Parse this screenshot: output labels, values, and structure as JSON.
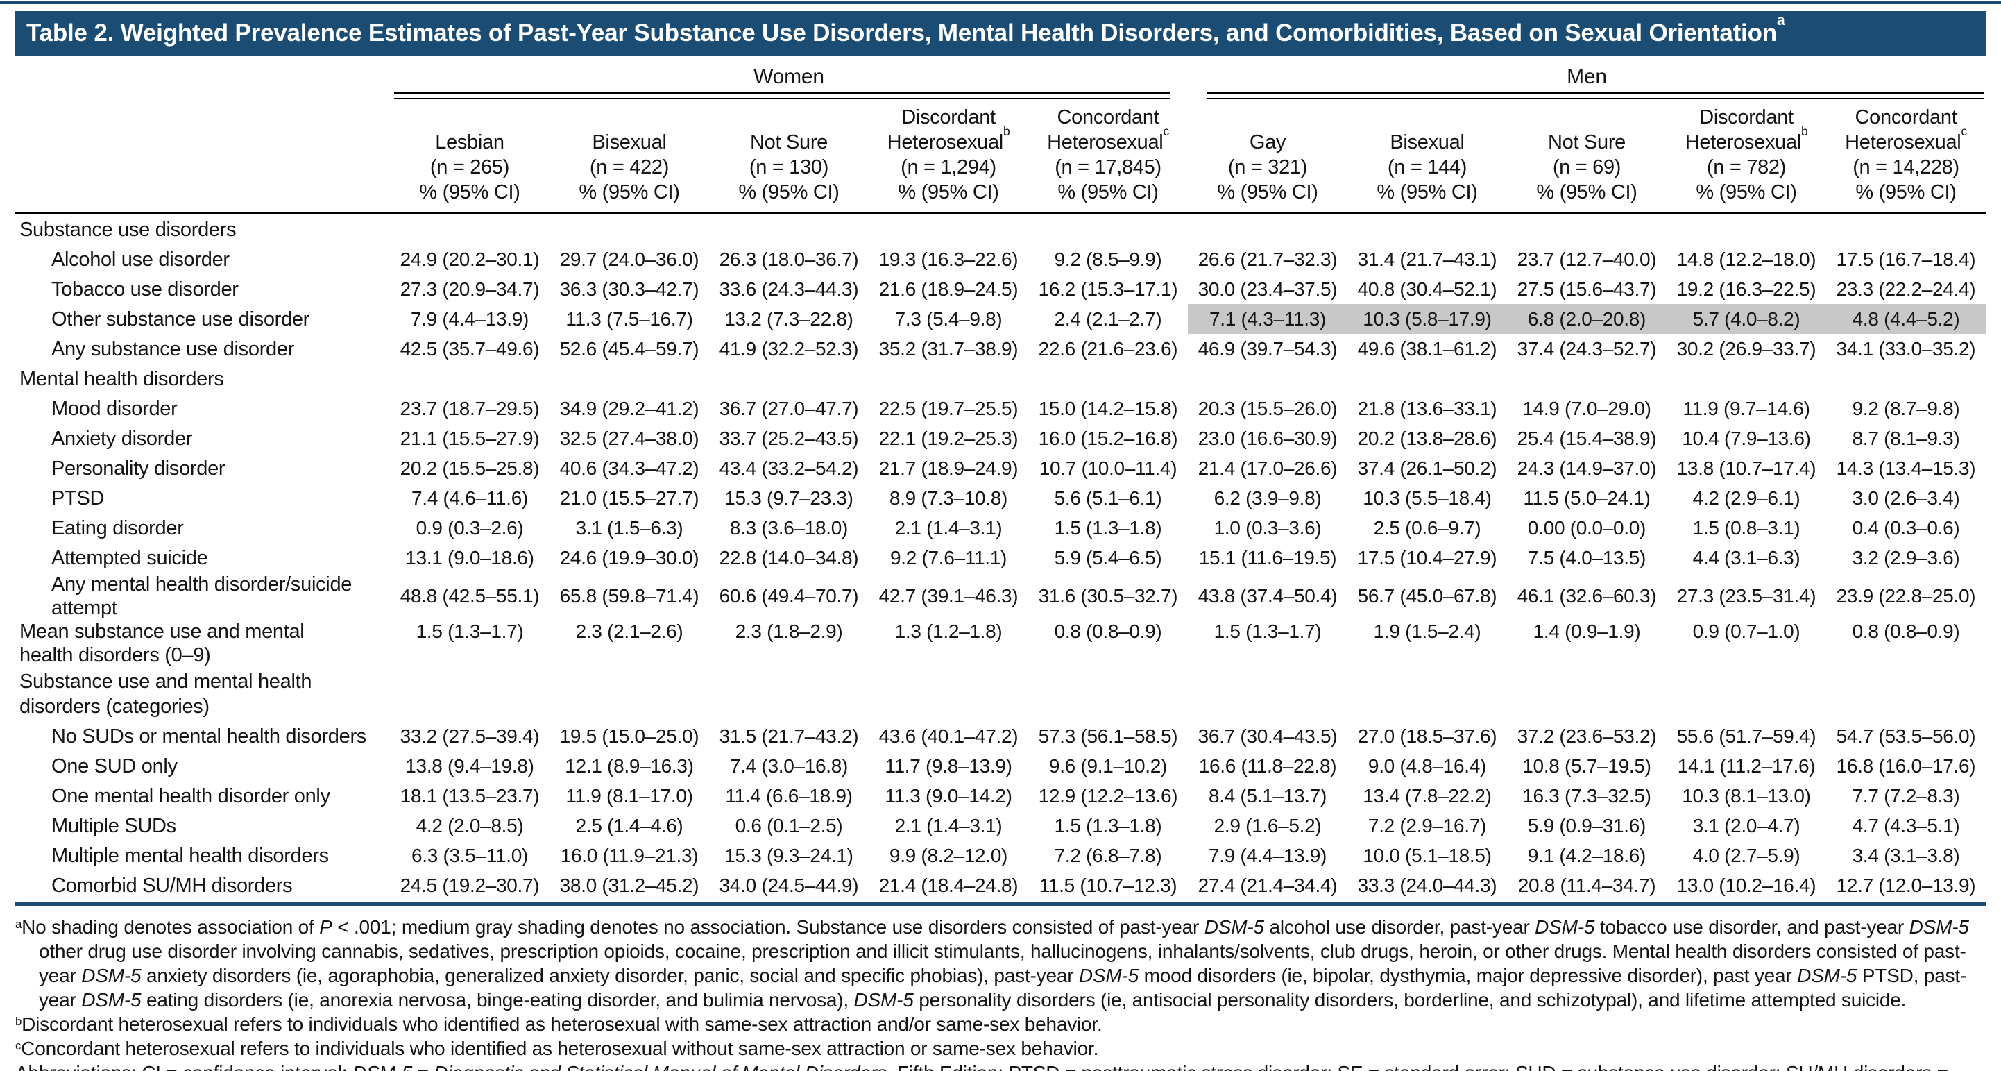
{
  "title": {
    "text": "Table 2. Weighted Prevalence Estimates of Past-Year Substance Use Disorders, Mental Health Disorders, and Comorbidities, Based on Sexual Orientation",
    "sup": "a"
  },
  "colors": {
    "navy": "#1b4d74",
    "shade": "#c8c8c8",
    "rule_black": "#000000"
  },
  "table": {
    "groups": [
      {
        "label": "Women"
      },
      {
        "label": "Men"
      }
    ],
    "stat_line": "% (95% CI)",
    "columns": [
      {
        "lines": [
          "Lesbian"
        ],
        "sup": "",
        "n": "(n = 265)",
        "stat": "% (95% CI)"
      },
      {
        "lines": [
          "Bisexual"
        ],
        "sup": "",
        "n": "(n = 422)",
        "stat": "% (95% CI)"
      },
      {
        "lines": [
          "Not Sure"
        ],
        "sup": "",
        "n": "(n = 130)",
        "stat": "% (95% CI)"
      },
      {
        "lines": [
          "Discordant",
          "Heterosexual"
        ],
        "sup": "b",
        "n": "(n = 1,294)",
        "stat": "% (95% CI)"
      },
      {
        "lines": [
          "Concordant",
          "Heterosexual"
        ],
        "sup": "c",
        "n": "(n = 17,845)",
        "stat": "% (95% CI)"
      },
      {
        "lines": [
          "Gay"
        ],
        "sup": "",
        "n": "(n = 321)",
        "stat": "% (95% CI)"
      },
      {
        "lines": [
          "Bisexual"
        ],
        "sup": "",
        "n": "(n = 144)",
        "stat": "% (95% CI)"
      },
      {
        "lines": [
          "Not Sure"
        ],
        "sup": "",
        "n": "(n = 69)",
        "stat": "% (95% CI)"
      },
      {
        "lines": [
          "Discordant",
          "Heterosexual"
        ],
        "sup": "b",
        "n": "(n = 782)",
        "stat": "% (95% CI)"
      },
      {
        "lines": [
          "Concordant",
          "Heterosexual"
        ],
        "sup": "c",
        "n": "(n = 14,228)",
        "stat": "% (95% CI)"
      }
    ],
    "rows": [
      {
        "type": "section",
        "label": "Substance use disorders"
      },
      {
        "type": "item",
        "label": "Alcohol use disorder",
        "values": [
          "24.9 (20.2–30.1)",
          "29.7 (24.0–36.0)",
          "26.3 (18.0–36.7)",
          "19.3 (16.3–22.6)",
          "9.2 (8.5–9.9)",
          "26.6 (21.7–32.3)",
          "31.4 (21.7–43.1)",
          "23.7 (12.7–40.0)",
          "14.8 (12.2–18.0)",
          "17.5 (16.7–18.4)"
        ],
        "shaded": []
      },
      {
        "type": "item",
        "label": "Tobacco use disorder",
        "values": [
          "27.3 (20.9–34.7)",
          "36.3 (30.3–42.7)",
          "33.6 (24.3–44.3)",
          "21.6 (18.9–24.5)",
          "16.2 (15.3–17.1)",
          "30.0 (23.4–37.5)",
          "40.8 (30.4–52.1)",
          "27.5 (15.6–43.7)",
          "19.2 (16.3–22.5)",
          "23.3 (22.2–24.4)"
        ],
        "shaded": []
      },
      {
        "type": "item",
        "label": "Other substance use disorder",
        "values": [
          "7.9 (4.4–13.9)",
          "11.3 (7.5–16.7)",
          "13.2 (7.3–22.8)",
          "7.3 (5.4–9.8)",
          "2.4 (2.1–2.7)",
          "7.1 (4.3–11.3)",
          "10.3 (5.8–17.9)",
          "6.8 (2.0–20.8)",
          "5.7 (4.0–8.2)",
          "4.8 (4.4–5.2)"
        ],
        "shaded": [
          5,
          6,
          7,
          8,
          9
        ]
      },
      {
        "type": "item",
        "label": "Any substance use disorder",
        "values": [
          "42.5 (35.7–49.6)",
          "52.6 (45.4–59.7)",
          "41.9 (32.2–52.3)",
          "35.2 (31.7–38.9)",
          "22.6 (21.6–23.6)",
          "46.9 (39.7–54.3)",
          "49.6 (38.1–61.2)",
          "37.4 (24.3–52.7)",
          "30.2 (26.9–33.7)",
          "34.1 (33.0–35.2)"
        ],
        "shaded": []
      },
      {
        "type": "section",
        "label": "Mental health disorders"
      },
      {
        "type": "item",
        "label": "Mood disorder",
        "values": [
          "23.7 (18.7–29.5)",
          "34.9 (29.2–41.2)",
          "36.7 (27.0–47.7)",
          "22.5 (19.7–25.5)",
          "15.0 (14.2–15.8)",
          "20.3 (15.5–26.0)",
          "21.8 (13.6–33.1)",
          "14.9 (7.0–29.0)",
          "11.9 (9.7–14.6)",
          "9.2 (8.7–9.8)"
        ],
        "shaded": []
      },
      {
        "type": "item",
        "label": "Anxiety disorder",
        "values": [
          "21.1 (15.5–27.9)",
          "32.5 (27.4–38.0)",
          "33.7 (25.2–43.5)",
          "22.1 (19.2–25.3)",
          "16.0 (15.2–16.8)",
          "23.0 (16.6–30.9)",
          "20.2 (13.8–28.6)",
          "25.4 (15.4–38.9)",
          "10.4 (7.9–13.6)",
          "8.7 (8.1–9.3)"
        ],
        "shaded": []
      },
      {
        "type": "item",
        "label": "Personality disorder",
        "values": [
          "20.2 (15.5–25.8)",
          "40.6 (34.3–47.2)",
          "43.4 (33.2–54.2)",
          "21.7 (18.9–24.9)",
          "10.7 (10.0–11.4)",
          "21.4 (17.0–26.6)",
          "37.4 (26.1–50.2)",
          "24.3 (14.9–37.0)",
          "13.8 (10.7–17.4)",
          "14.3 (13.4–15.3)"
        ],
        "shaded": []
      },
      {
        "type": "item",
        "label": "PTSD",
        "values": [
          "7.4 (4.6–11.6)",
          "21.0 (15.5–27.7)",
          "15.3 (9.7–23.3)",
          "8.9 (7.3–10.8)",
          "5.6 (5.1–6.1)",
          "6.2 (3.9–9.8)",
          "10.3 (5.5–18.4)",
          "11.5 (5.0–24.1)",
          "4.2 (2.9–6.1)",
          "3.0 (2.6–3.4)"
        ],
        "shaded": []
      },
      {
        "type": "item",
        "label": "Eating disorder",
        "values": [
          "0.9 (0.3–2.6)",
          "3.1 (1.5–6.3)",
          "8.3 (3.6–18.0)",
          "2.1 (1.4–3.1)",
          "1.5 (1.3–1.8)",
          "1.0 (0.3–3.6)",
          "2.5 (0.6–9.7)",
          "0.00 (0.0–0.0)",
          "1.5 (0.8–3.1)",
          "0.4 (0.3–0.6)"
        ],
        "shaded": []
      },
      {
        "type": "item",
        "label": "Attempted suicide",
        "values": [
          "13.1 (9.0–18.6)",
          "24.6 (19.9–30.0)",
          "22.8 (14.0–34.8)",
          "9.2 (7.6–11.1)",
          "5.9 (5.4–6.5)",
          "15.1 (11.6–19.5)",
          "17.5 (10.4–27.9)",
          "7.5 (4.0–13.5)",
          "4.4 (3.1–6.3)",
          "3.2 (2.9–3.6)"
        ],
        "shaded": []
      },
      {
        "type": "item",
        "label": "Any mental health disorder/suicide attempt",
        "values": [
          "48.8 (42.5–55.1)",
          "65.8 (59.8–71.4)",
          "60.6 (49.4–70.7)",
          "42.7 (39.1–46.3)",
          "31.6 (30.5–32.7)",
          "43.8 (37.4–50.4)",
          "56.7 (45.0–67.8)",
          "46.1 (32.6–60.3)",
          "27.3 (23.5–31.4)",
          "23.9 (22.8–25.0)"
        ],
        "shaded": []
      },
      {
        "type": "item",
        "noindent": true,
        "valign": "top",
        "label": "Mean substance use and mental health disorders (0–9)",
        "values": [
          "1.5 (1.3–1.7)",
          "2.3 (2.1–2.6)",
          "2.3 (1.8–2.9)",
          "1.3 (1.2–1.8)",
          "0.8 (0.8–0.9)",
          "1.5 (1.3–1.7)",
          "1.9 (1.5–2.4)",
          "1.4 (0.9–1.9)",
          "0.9 (0.7–1.0)",
          "0.8 (0.8–0.9)"
        ],
        "shaded": []
      },
      {
        "type": "section",
        "label": "Substance use and mental health disorders (categories)"
      },
      {
        "type": "item",
        "label": "No SUDs or mental health disorders",
        "values": [
          "33.2 (27.5–39.4)",
          "19.5 (15.0–25.0)",
          "31.5 (21.7–43.2)",
          "43.6 (40.1–47.2)",
          "57.3 (56.1–58.5)",
          "36.7 (30.4–43.5)",
          "27.0 (18.5–37.6)",
          "37.2 (23.6–53.2)",
          "55.6 (51.7–59.4)",
          "54.7 (53.5–56.0)"
        ],
        "shaded": []
      },
      {
        "type": "item",
        "label": "One SUD only",
        "values": [
          "13.8 (9.4–19.8)",
          "12.1 (8.9–16.3)",
          "7.4 (3.0–16.8)",
          "11.7 (9.8–13.9)",
          "9.6 (9.1–10.2)",
          "16.6 (11.8–22.8)",
          "9.0 (4.8–16.4)",
          "10.8 (5.7–19.5)",
          "14.1 (11.2–17.6)",
          "16.8 (16.0–17.6)"
        ],
        "shaded": []
      },
      {
        "type": "item",
        "label": "One mental health disorder only",
        "values": [
          "18.1 (13.5–23.7)",
          "11.9 (8.1–17.0)",
          "11.4 (6.6–18.9)",
          "11.3 (9.0–14.2)",
          "12.9 (12.2–13.6)",
          "8.4 (5.1–13.7)",
          "13.4 (7.8–22.2)",
          "16.3 (7.3–32.5)",
          "10.3 (8.1–13.0)",
          "7.7 (7.2–8.3)"
        ],
        "shaded": []
      },
      {
        "type": "item",
        "label": "Multiple SUDs",
        "values": [
          "4.2 (2.0–8.5)",
          "2.5 (1.4–4.6)",
          "0.6 (0.1–2.5)",
          "2.1 (1.4–3.1)",
          "1.5 (1.3–1.8)",
          "2.9 (1.6–5.2)",
          "7.2 (2.9–16.7)",
          "5.9 (0.9–31.6)",
          "3.1 (2.0–4.7)",
          "4.7 (4.3–5.1)"
        ],
        "shaded": []
      },
      {
        "type": "item",
        "label": "Multiple mental health disorders",
        "values": [
          "6.3 (3.5–11.0)",
          "16.0 (11.9–21.3)",
          "15.3 (9.3–24.1)",
          "9.9 (8.2–12.0)",
          "7.2 (6.8–7.8)",
          "7.9 (4.4–13.9)",
          "10.0 (5.1–18.5)",
          "9.1 (4.2–18.6)",
          "4.0 (2.7–5.9)",
          "3.4 (3.1–3.8)"
        ],
        "shaded": []
      },
      {
        "type": "item",
        "label": "Comorbid SU/MH disorders",
        "values": [
          "24.5 (19.2–30.7)",
          "38.0 (31.2–45.2)",
          "34.0 (24.5–44.9)",
          "21.4 (18.4–24.8)",
          "11.5 (10.7–12.3)",
          "27.4 (21.4–34.4)",
          "33.3 (24.0–44.3)",
          "20.8 (11.4–34.7)",
          "13.0 (10.2–16.4)",
          "12.7 (12.0–13.9)"
        ],
        "shaded": []
      }
    ]
  },
  "footnotes": [
    {
      "sup": "a",
      "segments": [
        {
          "t": "No shading denotes association of "
        },
        {
          "t": "P",
          "i": true
        },
        {
          "t": " < .001; medium gray shading denotes no association. Substance use disorders consisted of past-year "
        },
        {
          "t": "DSM-5",
          "i": true
        },
        {
          "t": " alcohol use disorder, past-year "
        },
        {
          "t": "DSM-5",
          "i": true
        },
        {
          "t": " tobacco use disorder, and past-year "
        },
        {
          "t": "DSM-5",
          "i": true
        },
        {
          "t": " other drug use disorder involving cannabis, sedatives, prescription opioids, cocaine, prescription and illicit stimulants, hallucinogens, inhalants/solvents, club drugs, heroin, or other drugs. Mental health disorders consisted of past-year "
        },
        {
          "t": "DSM-5",
          "i": true
        },
        {
          "t": " anxiety disorders (ie, agoraphobia, generalized anxiety disorder, panic, social and specific phobias), past-year "
        },
        {
          "t": "DSM-5",
          "i": true
        },
        {
          "t": " mood disorders (ie, bipolar, dysthymia, major depressive disorder), past year "
        },
        {
          "t": "DSM-5",
          "i": true
        },
        {
          "t": " PTSD, past-year "
        },
        {
          "t": "DSM-5",
          "i": true
        },
        {
          "t": " eating disorders (ie, anorexia nervosa, binge-eating disorder, and bulimia nervosa), "
        },
        {
          "t": "DSM-5",
          "i": true
        },
        {
          "t": " personality disorders (ie, antisocial personality disorders, borderline, and schizotypal), and lifetime attempted suicide."
        }
      ]
    },
    {
      "sup": "b",
      "segments": [
        {
          "t": "Discordant heterosexual refers to individuals who identified as heterosexual with same-sex attraction and/or same-sex behavior."
        }
      ]
    },
    {
      "sup": "c",
      "segments": [
        {
          "t": "Concordant heterosexual refers to individuals who identified as heterosexual without same-sex attraction or same-sex behavior."
        }
      ]
    },
    {
      "sup": "",
      "segments": [
        {
          "t": "Abbreviations: CI = confidence interval; "
        },
        {
          "t": "DSM-5",
          "i": true
        },
        {
          "t": " = "
        },
        {
          "t": "Diagnostic and Statistical Manual of Mental Disorders",
          "i": true
        },
        {
          "t": ", Fifth Edition; PTSD = posttraumatic stress disorder; SE = standard error; SUD = substance use disorder; SU/MH disorders = substance use and mental health disorders."
        }
      ]
    }
  ]
}
